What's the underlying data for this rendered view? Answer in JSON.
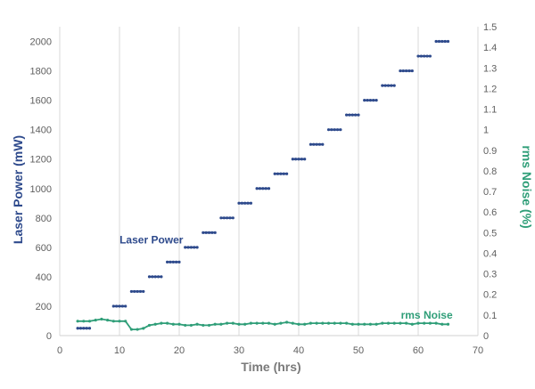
{
  "chart_data": {
    "type": "line",
    "title": "",
    "xlabel": "Time (hrs)",
    "ylabel": "Laser Power (mW)",
    "y2label": "rms Noise (%)",
    "xlim": [
      0,
      70
    ],
    "ylim": [
      0,
      2100
    ],
    "y2lim": [
      0,
      1.5
    ],
    "x_ticks": [
      "0",
      "10",
      "20",
      "30",
      "40",
      "50",
      "60",
      "70"
    ],
    "y_ticks": [
      "0",
      "200",
      "400",
      "600",
      "800",
      "1000",
      "1200",
      "1400",
      "1600",
      "1800",
      "2000"
    ],
    "y2_ticks": [
      "0",
      "0.1",
      "0.2",
      "0.3",
      "0.4",
      "0.5",
      "0.6",
      "0.7",
      "0.8",
      "0.9",
      "1",
      "1.1",
      "1.2",
      "1.3",
      "1.4",
      "1.5"
    ],
    "grid": {
      "vertical": true,
      "horizontal": false
    },
    "series": [
      {
        "name": "Laser Power",
        "axis": "left",
        "color": "#2e4a8c",
        "label_at": [
          13,
          650
        ],
        "segments": [
          {
            "x": [
              3,
              5
            ],
            "y": 50
          },
          {
            "x": [
              9,
              11
            ],
            "y": 200
          },
          {
            "x": [
              12,
              14
            ],
            "y": 300
          },
          {
            "x": [
              15,
              17
            ],
            "y": 400
          },
          {
            "x": [
              18,
              20
            ],
            "y": 500
          },
          {
            "x": [
              21,
              23
            ],
            "y": 600
          },
          {
            "x": [
              24,
              26
            ],
            "y": 700
          },
          {
            "x": [
              27,
              29
            ],
            "y": 800
          },
          {
            "x": [
              30,
              32
            ],
            "y": 900
          },
          {
            "x": [
              33,
              35
            ],
            "y": 1000
          },
          {
            "x": [
              36,
              38
            ],
            "y": 1100
          },
          {
            "x": [
              39,
              41
            ],
            "y": 1200
          },
          {
            "x": [
              42,
              44
            ],
            "y": 1300
          },
          {
            "x": [
              45,
              47
            ],
            "y": 1400
          },
          {
            "x": [
              48,
              50
            ],
            "y": 1500
          },
          {
            "x": [
              51,
              53
            ],
            "y": 1600
          },
          {
            "x": [
              54,
              56
            ],
            "y": 1700
          },
          {
            "x": [
              57,
              59
            ],
            "y": 1800
          },
          {
            "x": [
              60,
              62
            ],
            "y": 1900
          },
          {
            "x": [
              63,
              65
            ],
            "y": 2000
          }
        ]
      },
      {
        "name": "rms Noise",
        "axis": "right",
        "color": "#2f9e78",
        "label_at": [
          58,
          0.1
        ],
        "x": [
          3,
          4,
          5,
          6,
          7,
          8,
          9,
          10,
          11,
          12,
          13,
          14,
          15,
          16,
          17,
          18,
          19,
          20,
          21,
          22,
          23,
          24,
          25,
          26,
          27,
          28,
          29,
          30,
          31,
          32,
          33,
          34,
          35,
          36,
          37,
          38,
          39,
          40,
          41,
          42,
          43,
          44,
          45,
          46,
          47,
          48,
          49,
          50,
          51,
          52,
          53,
          54,
          55,
          56,
          57,
          58,
          59,
          60,
          61,
          62,
          63,
          64,
          65
        ],
        "values": [
          0.07,
          0.07,
          0.07,
          0.075,
          0.08,
          0.075,
          0.07,
          0.07,
          0.07,
          0.03,
          0.03,
          0.035,
          0.05,
          0.055,
          0.06,
          0.06,
          0.055,
          0.055,
          0.05,
          0.05,
          0.055,
          0.05,
          0.05,
          0.055,
          0.055,
          0.06,
          0.06,
          0.055,
          0.055,
          0.06,
          0.06,
          0.06,
          0.06,
          0.055,
          0.06,
          0.065,
          0.06,
          0.055,
          0.055,
          0.06,
          0.06,
          0.06,
          0.06,
          0.06,
          0.06,
          0.06,
          0.055,
          0.055,
          0.055,
          0.055,
          0.055,
          0.06,
          0.06,
          0.06,
          0.06,
          0.06,
          0.055,
          0.06,
          0.06,
          0.06,
          0.06,
          0.055,
          0.055
        ]
      }
    ]
  }
}
